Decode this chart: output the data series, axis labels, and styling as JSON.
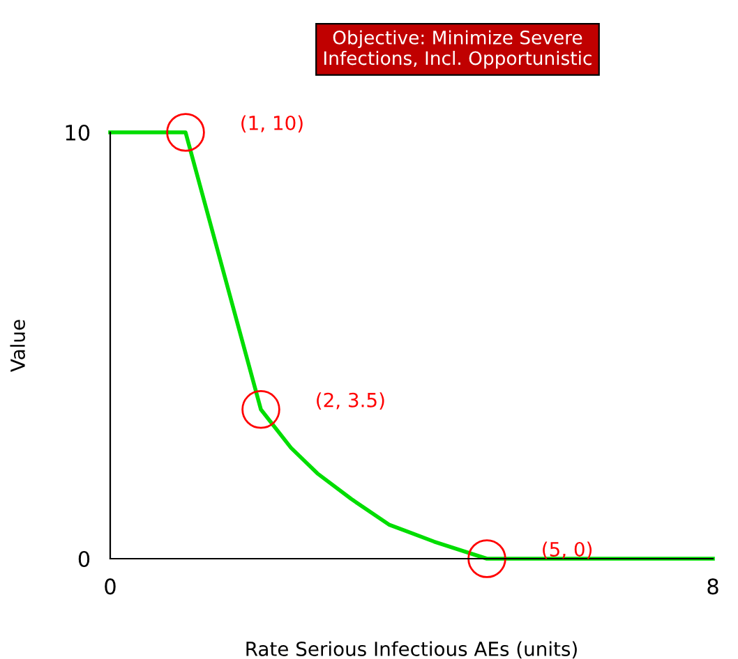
{
  "chart_data": {
    "type": "line",
    "title": "Objective: Minimize Severe\nInfections, Incl. Opportunistic",
    "xlabel": "Rate Serious Infectious AEs (units)",
    "ylabel": "Value",
    "x": [
      0,
      1,
      2,
      2.4,
      2.75,
      3.2,
      3.7,
      4.3,
      5,
      8
    ],
    "series": [
      {
        "color": "#00dd00",
        "values": [
          10,
          10,
          3.5,
          2.6,
          2.0,
          1.4,
          0.8,
          0.4,
          0,
          0
        ]
      }
    ],
    "xlim": [
      0,
      8
    ],
    "ylim": [
      0,
      10
    ],
    "xticks": [
      0,
      8
    ],
    "yticks": [
      0,
      10
    ],
    "annotations": [
      {
        "text": "(1, 10)",
        "x": 1,
        "y": 10
      },
      {
        "text": "(2, 3.5)",
        "x": 2,
        "y": 3.5
      },
      {
        "text": "(5, 0)",
        "x": 5,
        "y": 0
      }
    ],
    "grid": false,
    "legend": false
  }
}
